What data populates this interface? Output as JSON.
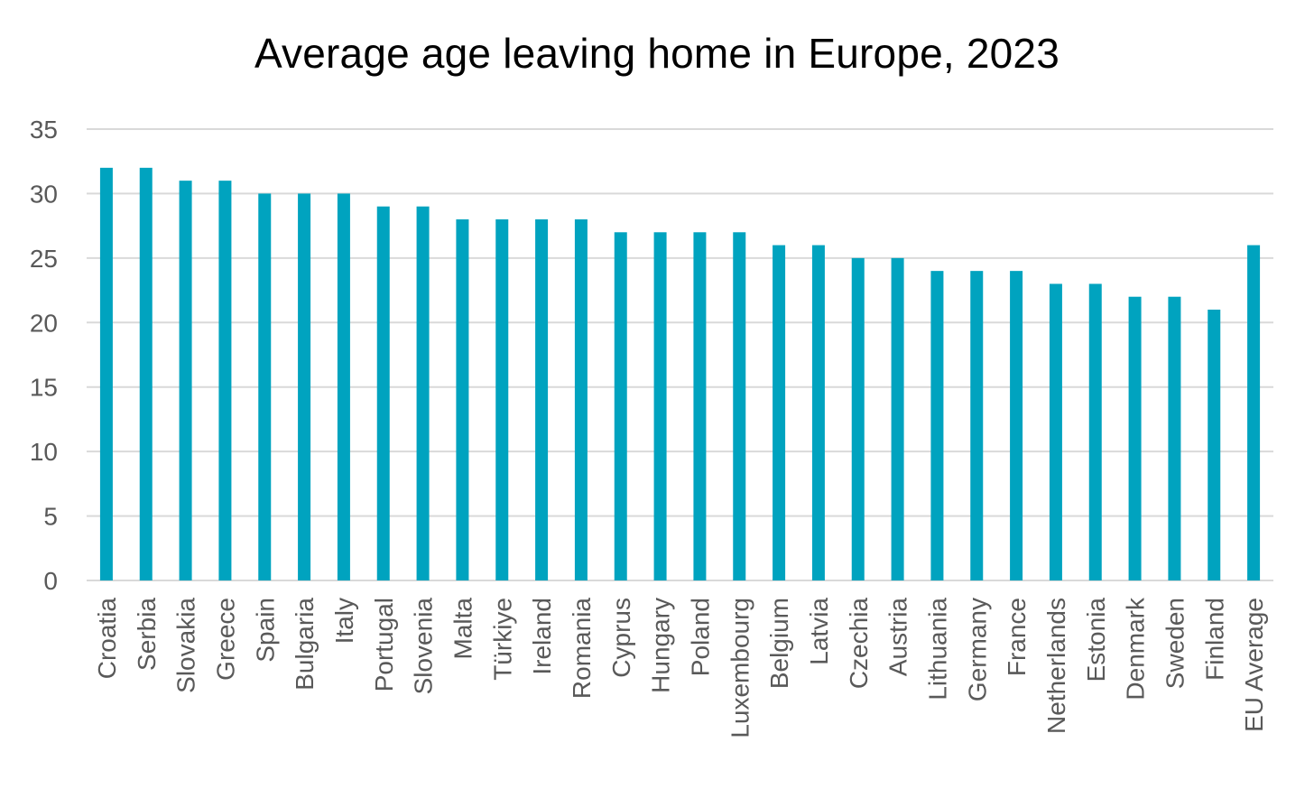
{
  "chart_data": {
    "type": "bar",
    "title": "Average age leaving home in Europe, 2023",
    "xlabel": "",
    "ylabel": "",
    "ylim": [
      0,
      35
    ],
    "yticks": [
      0,
      5,
      10,
      15,
      20,
      25,
      30,
      35
    ],
    "grid": true,
    "legend": "none",
    "bar_color": "#00A3BF",
    "categories": [
      "Croatia",
      "Serbia",
      "Slovakia",
      "Greece",
      "Spain",
      "Bulgaria",
      "Italy",
      "Portugal",
      "Slovenia",
      "Malta",
      "Türkiye",
      "Ireland",
      "Romania",
      "Cyprus",
      "Hungary",
      "Poland",
      "Luxembourg",
      "Belgium",
      "Latvia",
      "Czechia",
      "Austria",
      "Lithuania",
      "Germany",
      "France",
      "Netherlands",
      "Estonia",
      "Denmark",
      "Sweden",
      "Finland",
      "EU Average"
    ],
    "values": [
      32,
      32,
      31,
      31,
      30,
      30,
      30,
      29,
      29,
      28,
      28,
      28,
      28,
      27,
      27,
      27,
      27,
      26,
      26,
      25,
      25,
      24,
      24,
      24,
      23,
      23,
      22,
      22,
      21,
      26
    ]
  }
}
